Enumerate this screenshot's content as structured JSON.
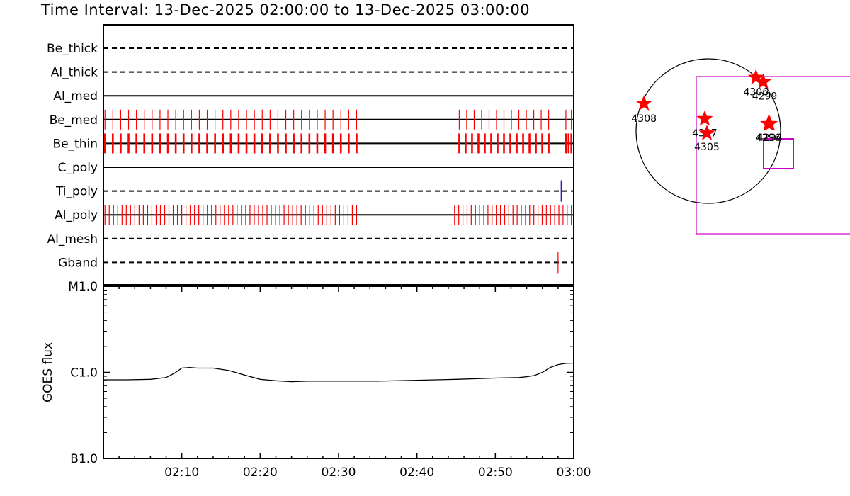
{
  "title": "Time Interval: 13-Dec-2025 02:00:00 to 13-Dec-2025 03:00:00",
  "colors": {
    "frame": "#000000",
    "thin_ticks": "#ff0000",
    "ti_poly_tick": "#0000cc",
    "box": "#cc00cc",
    "star": "#ff0000"
  },
  "chart_data": [
    {
      "type": "timeline",
      "xlim": [
        "02:00",
        "03:00"
      ],
      "rows": [
        {
          "label": "Be_thick",
          "line": "dashed",
          "ticks": []
        },
        {
          "label": "Al_thick",
          "line": "dashed",
          "ticks": []
        },
        {
          "label": "Al_med",
          "line": "solid",
          "ticks": []
        },
        {
          "label": "Be_med",
          "line": "solid",
          "color": "red",
          "tick_spans": [
            {
              "start_min": 0.2,
              "end_min": 32.3,
              "count": 33
            },
            {
              "start_min": 45.4,
              "end_min": 56.8,
              "count": 13
            },
            {
              "start_min": 59.0,
              "end_min": 59.7,
              "count": 2
            }
          ]
        },
        {
          "label": "Be_thin",
          "line": "solid",
          "color": "red",
          "style": "thick",
          "tick_spans": [
            {
              "start_min": 0.2,
              "end_min": 32.3,
              "count": 33
            },
            {
              "start_min": 45.4,
              "end_min": 56.8,
              "count": 15
            },
            {
              "start_min": 59.0,
              "end_min": 59.7,
              "count": 3
            }
          ]
        },
        {
          "label": "C_poly",
          "line": "solid",
          "ticks": []
        },
        {
          "label": "Ti_poly",
          "line": "dashed",
          "color": "blue",
          "ticks": [
            58.4
          ]
        },
        {
          "label": "Al_poly",
          "line": "solid",
          "color": "red",
          "tick_spans": [
            {
              "start_min": 0.2,
              "end_min": 32.3,
              "count": 60
            },
            {
              "start_min": 44.8,
              "end_min": 59.7,
              "count": 29
            }
          ]
        },
        {
          "label": "Al_mesh",
          "line": "dashed",
          "ticks": []
        },
        {
          "label": "Gband",
          "line": "dashed",
          "color": "red",
          "ticks": [
            58.0
          ]
        }
      ]
    },
    {
      "type": "line",
      "ylabel": "GOES flux",
      "yscale": "log",
      "ylim": [
        1e-07,
        1e-05
      ],
      "yticks": [
        {
          "value": 1e-07,
          "label": "B1.0"
        },
        {
          "value": 1e-06,
          "label": "C1.0"
        },
        {
          "value": 1e-05,
          "label": "M1.0"
        }
      ],
      "xlim": [
        "02:00",
        "03:00"
      ],
      "xticks": [
        "02:10",
        "02:20",
        "02:30",
        "02:40",
        "02:50",
        "03:00"
      ],
      "series": [
        {
          "x_min": [
            0,
            3,
            6,
            8,
            9,
            10,
            11,
            12,
            14,
            16,
            18,
            20,
            22,
            24,
            26,
            30,
            35,
            40,
            45,
            50,
            53,
            54,
            55,
            56,
            57,
            58,
            59,
            60
          ],
          "values": [
            8.2e-07,
            8.2e-07,
            8.3e-07,
            8.7e-07,
            9.7e-07,
            1.12e-06,
            1.14e-06,
            1.12e-06,
            1.12e-06,
            1.05e-06,
            9.3e-07,
            8.3e-07,
            8e-07,
            7.8e-07,
            7.9e-07,
            7.9e-07,
            7.9e-07,
            8.1e-07,
            8.3e-07,
            8.6e-07,
            8.7e-07,
            8.9e-07,
            9.2e-07,
            1e-06,
            1.14e-06,
            1.23e-06,
            1.27e-06,
            1.28e-06
          ]
        }
      ]
    },
    {
      "type": "scatter",
      "marker": "star",
      "points": [
        {
          "label": "4308",
          "x": -0.89,
          "y": 0.38
        },
        {
          "label": "4307",
          "x": -0.05,
          "y": 0.17
        },
        {
          "label": "4305",
          "x": -0.02,
          "y": -0.03
        },
        {
          "label": "4306",
          "x": 0.66,
          "y": 0.74
        },
        {
          "label": "4299",
          "x": 0.76,
          "y": 0.68
        },
        {
          "label": "4296",
          "x": 0.83,
          "y": 0.1
        },
        {
          "label": "4294",
          "x": 0.85,
          "y": 0.1
        }
      ]
    }
  ]
}
